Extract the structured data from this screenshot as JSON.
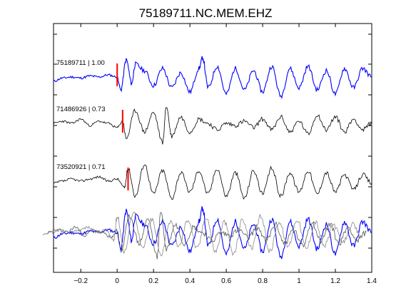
{
  "chart_data": {
    "type": "line",
    "title": "75189711.NC.MEM.EHZ",
    "xlabel": "",
    "ylabel": "",
    "xlim": [
      -0.35,
      1.4
    ],
    "xticks": [
      -0.2,
      0,
      0.2,
      0.4,
      0.6,
      0.8,
      1,
      1.2,
      1.4
    ],
    "xtick_labels": [
      "−0.2",
      "0",
      "0.2",
      "0.4",
      "0.6",
      "0.8",
      "1",
      "1.2",
      "1.4"
    ],
    "grid": false,
    "series": [
      {
        "label": "75189711 | 1.00",
        "color": "#0000ff",
        "pick_time": 0.0,
        "seed": 11,
        "x": [
          -0.35,
          -0.3,
          -0.25,
          -0.2,
          -0.15,
          -0.1,
          -0.05,
          0.0,
          0.02,
          0.05,
          0.08,
          0.1,
          0.15,
          0.2,
          0.25,
          0.3,
          0.35,
          0.4,
          0.45,
          0.47,
          0.5,
          0.55,
          0.6,
          0.65,
          0.7,
          0.75,
          0.8,
          0.85,
          0.9,
          0.95,
          1.0,
          1.05,
          1.1,
          1.15,
          1.2,
          1.25,
          1.3,
          1.35,
          1.4
        ],
        "y": [
          -0.1,
          0.05,
          0.1,
          0.05,
          0.15,
          0.1,
          0.2,
          0.1,
          -0.5,
          0.9,
          -0.2,
          0.7,
          0.4,
          -0.3,
          0.5,
          -0.4,
          0.3,
          -0.6,
          0.5,
          1.0,
          -0.4,
          0.6,
          -0.7,
          0.5,
          -0.5,
          0.4,
          -0.6,
          0.6,
          -0.8,
          0.5,
          -0.4,
          0.6,
          -0.5,
          0.4,
          -0.7,
          0.5,
          -0.4,
          0.5,
          0.1
        ]
      },
      {
        "label": "71486926 | 0.73",
        "color": "#000000",
        "pick_time": 0.03,
        "seed": 23,
        "x": [
          -0.35,
          -0.3,
          -0.25,
          -0.2,
          -0.15,
          -0.1,
          -0.05,
          0.0,
          0.03,
          0.05,
          0.1,
          0.15,
          0.2,
          0.25,
          0.27,
          0.3,
          0.35,
          0.4,
          0.45,
          0.5,
          0.55,
          0.6,
          0.65,
          0.7,
          0.75,
          0.8,
          0.85,
          0.9,
          0.95,
          1.0,
          1.05,
          1.1,
          1.15,
          1.2,
          1.25,
          1.3,
          1.35,
          1.4
        ],
        "y": [
          0.1,
          0.2,
          0.1,
          0.3,
          0.0,
          0.2,
          0.1,
          -0.1,
          0.2,
          -0.6,
          0.7,
          -0.3,
          0.6,
          -0.8,
          0.9,
          -0.5,
          0.4,
          -0.3,
          0.3,
          0.1,
          -0.2,
          0.1,
          0.0,
          0.2,
          -0.1,
          0.3,
          -0.2,
          0.4,
          -0.3,
          0.2,
          -0.4,
          0.5,
          -0.2,
          0.4,
          -0.3,
          0.3,
          -0.2,
          0.1
        ]
      },
      {
        "label": "73520921 | 0.71",
        "color": "#000000",
        "pick_time": 0.06,
        "seed": 37,
        "x": [
          -0.35,
          -0.3,
          -0.25,
          -0.2,
          -0.15,
          -0.1,
          -0.05,
          0.0,
          0.04,
          0.06,
          0.1,
          0.15,
          0.2,
          0.25,
          0.3,
          0.35,
          0.4,
          0.45,
          0.5,
          0.55,
          0.6,
          0.65,
          0.7,
          0.75,
          0.8,
          0.85,
          0.9,
          0.95,
          1.0,
          1.05,
          1.1,
          1.15,
          1.2,
          1.25,
          1.3,
          1.35,
          1.4
        ],
        "y": [
          0.0,
          0.1,
          0.2,
          0.1,
          0.2,
          0.3,
          0.1,
          0.2,
          -0.2,
          0.7,
          -0.6,
          0.9,
          -0.5,
          0.6,
          -0.7,
          0.5,
          -0.4,
          0.6,
          -0.5,
          0.7,
          -0.6,
          0.5,
          -0.7,
          0.6,
          -0.5,
          0.7,
          -0.6,
          0.5,
          -0.4,
          0.6,
          -0.5,
          0.5,
          -0.4,
          0.4,
          -0.3,
          0.4,
          0.0
        ]
      }
    ]
  }
}
